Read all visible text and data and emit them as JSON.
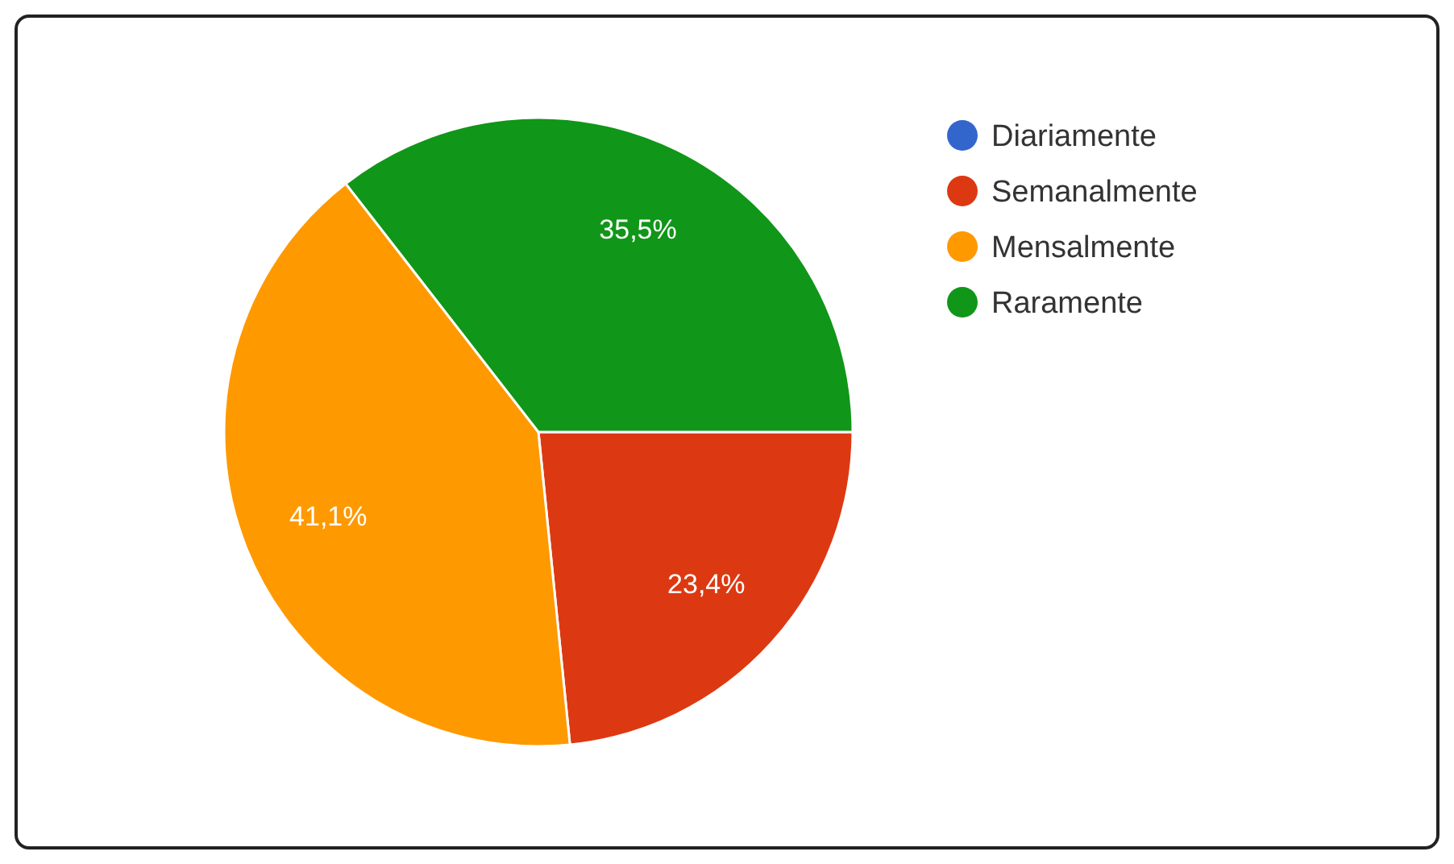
{
  "chart_data": {
    "type": "pie",
    "categories": [
      "Diariamente",
      "Semanalmente",
      "Mensalmente",
      "Raramente"
    ],
    "values": [
      0,
      23.4,
      41.1,
      35.5
    ],
    "colors": [
      "#3366cc",
      "#dc3912",
      "#ff9900",
      "#109618"
    ],
    "value_labels": [
      null,
      "23,4%",
      "41,1%",
      "35,5%"
    ],
    "legend": "top right"
  }
}
